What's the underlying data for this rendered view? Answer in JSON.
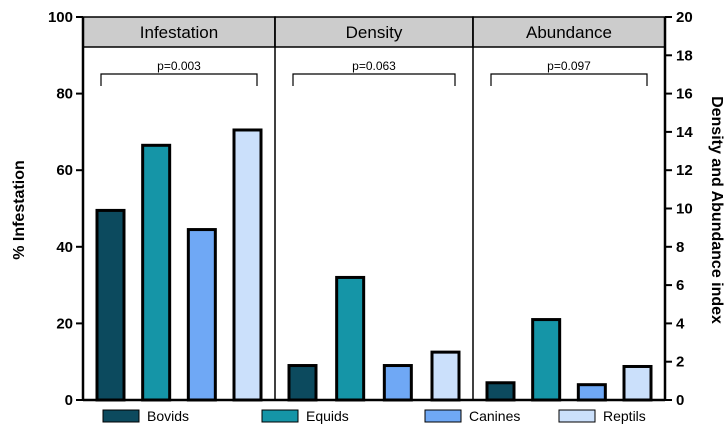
{
  "chart_data": {
    "type": "bar",
    "categories": [
      "Bovids",
      "Equids",
      "Canines",
      "Reptils"
    ],
    "colors": [
      "#0c4a5e",
      "#1595a7",
      "#6fa8f5",
      "#cbe0fb"
    ],
    "panels": [
      {
        "name": "Infestation",
        "axis": "left",
        "values": [
          49.5,
          66.5,
          44.5,
          70.5
        ],
        "pvalue": "p=0.003"
      },
      {
        "name": "Density",
        "axis": "right",
        "values": [
          1.8,
          6.4,
          1.8,
          2.5
        ],
        "pvalue": "p=0.063"
      },
      {
        "name": "Abundance",
        "axis": "right",
        "values": [
          0.9,
          4.2,
          0.8,
          1.75
        ],
        "pvalue": "p=0.097"
      }
    ],
    "y_left": {
      "label": "% Infestation",
      "ylim": [
        0,
        100
      ],
      "ticks": [
        "0",
        "20",
        "40",
        "60",
        "80",
        "100"
      ]
    },
    "y_right": {
      "label": "Density and Abundance index",
      "ylim": [
        0,
        20
      ],
      "ticks": [
        "0",
        "2",
        "4",
        "6",
        "8",
        "10",
        "12",
        "14",
        "16",
        "18",
        "20"
      ]
    },
    "legend": {
      "placement": "bottom",
      "entries": [
        "Bovids",
        "Equids",
        "Canines",
        "Reptils"
      ]
    },
    "grid": false
  }
}
